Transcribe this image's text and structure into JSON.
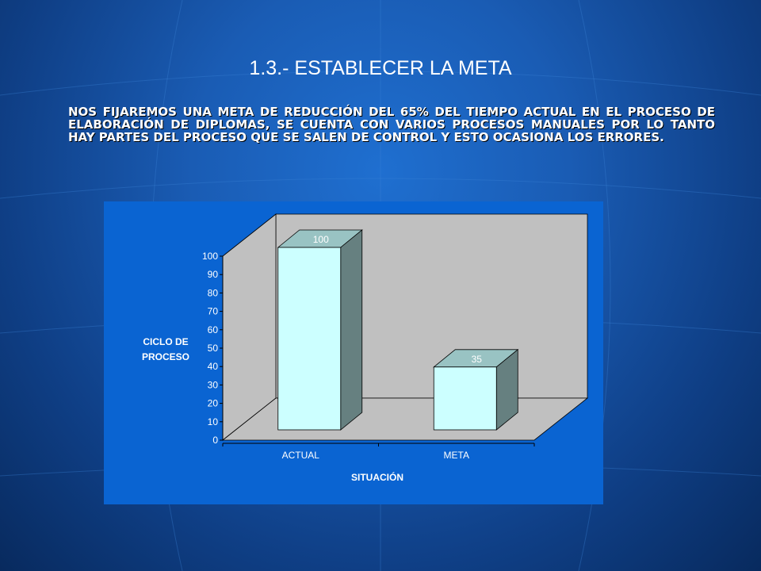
{
  "slide": {
    "title": "1.3.- ESTABLECER LA META",
    "paragraph": "NOS FIJAREMOS UNA META DE REDUCCIÓN DEL 65% DEL TIEMPO ACTUAL EN EL PROCESO DE ELABORACIÓN DE DIPLOMAS, SE CUENTA CON VARIOS PROCESOS MANUALES POR LO TANTO HAY PARTES DEL PROCESO QUE SE SALEN DE CONTROL Y ESTO OCASIONA LOS ERRORES."
  },
  "colors": {
    "chart_background": "#0a64d2",
    "plot_wall": "#c0c0c0",
    "bar_front": "#ccffff",
    "bar_top": "#99c3c3",
    "bar_side": "#668080"
  },
  "chart_data": {
    "type": "bar",
    "categories": [
      "ACTUAL",
      "META"
    ],
    "values": [
      100,
      35
    ],
    "data_labels": [
      "100",
      "35"
    ],
    "title": "",
    "xlabel": "SITUACIÓN",
    "ylabel_lines": [
      "CICLO DE",
      "PROCESO"
    ],
    "ylim": [
      0,
      100
    ],
    "yticks": [
      "0",
      "10",
      "20",
      "30",
      "40",
      "50",
      "60",
      "70",
      "80",
      "90",
      "100"
    ],
    "three_d": true,
    "legend": "none",
    "grid": false
  }
}
